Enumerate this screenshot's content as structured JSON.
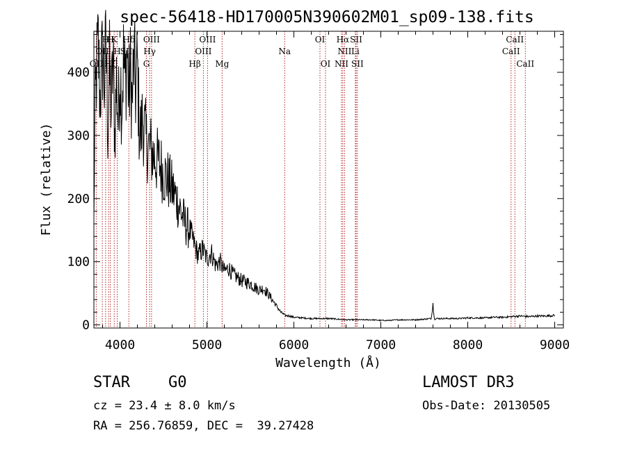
{
  "chart_data": {
    "type": "line",
    "title": "spec-56418-HD170005N390602M01_sp09-138.fits",
    "xlabel": "Wavelength (Å)",
    "ylabel": "Flux (relative)",
    "xlim": [
      3700,
      9100
    ],
    "ylim": [
      -5,
      465
    ],
    "xticks": [
      4000,
      5000,
      6000,
      7000,
      8000,
      9000
    ],
    "xtick_labels": [
      "4000",
      "5000",
      "6000",
      "7000",
      "8000",
      "9000"
    ],
    "yticks": [
      0,
      100,
      200,
      300,
      400
    ],
    "ytick_labels": [
      "0",
      "100",
      "200",
      "300",
      "400"
    ],
    "grid": false,
    "line_color": "#000000",
    "marker_color": "#b22222",
    "series": [
      {
        "name": "flux",
        "x": [
          3700,
          3710,
          3730,
          3750,
          3770,
          3800,
          3820,
          3840,
          3860,
          3880,
          3900,
          3920,
          3940,
          3960,
          3980,
          4000,
          4020,
          4040,
          4060,
          4080,
          4100,
          4120,
          4140,
          4160,
          4180,
          4200,
          4220,
          4240,
          4260,
          4300,
          4340,
          4380,
          4420,
          4460,
          4500,
          4550,
          4600,
          4650,
          4700,
          4750,
          4800,
          4850,
          4900,
          4950,
          5000,
          5050,
          5100,
          5150,
          5200,
          5250,
          5300,
          5350,
          5400,
          5450,
          5500,
          5550,
          5600,
          5650,
          5700,
          5750,
          5800,
          5850,
          5900,
          5950,
          6000,
          6100,
          6200,
          6300,
          6400,
          6500,
          6600,
          6700,
          6800,
          6900,
          7000,
          7100,
          7200,
          7300,
          7400,
          7500,
          7580,
          7600,
          7610,
          7620,
          7640,
          7700,
          7800,
          7900,
          8000,
          8100,
          8200,
          8300,
          8400,
          8500,
          8600,
          8700,
          8800,
          8900,
          9000
        ],
        "y": [
          160,
          320,
          400,
          440,
          360,
          430,
          380,
          445,
          310,
          400,
          340,
          420,
          300,
          390,
          320,
          410,
          350,
          420,
          380,
          440,
          360,
          400,
          350,
          420,
          370,
          410,
          320,
          300,
          330,
          290,
          280,
          270,
          260,
          255,
          240,
          230,
          215,
          200,
          180,
          160,
          150,
          130,
          110,
          120,
          105,
          115,
          95,
          100,
          85,
          90,
          80,
          75,
          70,
          68,
          65,
          60,
          55,
          58,
          50,
          40,
          30,
          20,
          15,
          14,
          12,
          11,
          10,
          10,
          10,
          9,
          8,
          8,
          8,
          8,
          7,
          7,
          8,
          8,
          8,
          9,
          10,
          35,
          15,
          9,
          10,
          10,
          10,
          10,
          11,
          11,
          11,
          12,
          12,
          13,
          14,
          13,
          14,
          14,
          15
        ]
      }
    ],
    "line_markers": [
      {
        "x": 3727,
        "labels": [
          "OII"
        ]
      },
      {
        "x": 3797,
        "labels": [
          "OII",
          "H"
        ]
      },
      {
        "x": 3835,
        "labels": [
          "Hη",
          "Hζ"
        ]
      },
      {
        "x": 3869,
        "labels": [
          "NeIII"
        ]
      },
      {
        "x": 3889,
        "labels": [
          "Hζ"
        ]
      },
      {
        "x": 3934,
        "labels": [
          "K"
        ]
      },
      {
        "x": 3968,
        "labels": [
          "H"
        ]
      },
      {
        "x": 4102,
        "labels": [
          "Hδ",
          "SII"
        ]
      },
      {
        "x": 4304,
        "labels": [
          "G"
        ]
      },
      {
        "x": 4341,
        "labels": [
          "Hγ"
        ]
      },
      {
        "x": 4363,
        "labels": [
          "OIII"
        ]
      },
      {
        "x": 4861,
        "labels": [
          "Hβ"
        ]
      },
      {
        "x": 4959,
        "labels": [
          "OIII"
        ]
      },
      {
        "x": 5007,
        "labels": [
          "OIII"
        ]
      },
      {
        "x": 5175,
        "labels": [
          "Mg"
        ]
      },
      {
        "x": 5894,
        "labels": [
          "Na"
        ]
      },
      {
        "x": 6300,
        "labels": [
          "OI"
        ]
      },
      {
        "x": 6364,
        "labels": [
          "OI"
        ]
      },
      {
        "x": 6548,
        "labels": [
          "NII"
        ]
      },
      {
        "x": 6563,
        "labels": [
          "Hα"
        ]
      },
      {
        "x": 6583,
        "labels": [
          "NII"
        ]
      },
      {
        "x": 6707,
        "labels": [
          "Li"
        ]
      },
      {
        "x": 6716,
        "labels": [
          "SII"
        ]
      },
      {
        "x": 6731,
        "labels": [
          "SII"
        ]
      },
      {
        "x": 8498,
        "labels": [
          "CaII"
        ]
      },
      {
        "x": 8542,
        "labels": [
          "CaII"
        ]
      },
      {
        "x": 8662,
        "labels": [
          "CaII"
        ]
      }
    ],
    "marker_labels": [
      {
        "text": "OII",
        "x": 3727,
        "row": 3
      },
      {
        "text": "OII",
        "x": 3797,
        "row": 2
      },
      {
        "text": "H",
        "x": 3835,
        "row": 1
      },
      {
        "text": "H",
        "x": 3890,
        "row": 1
      },
      {
        "text": "Hζ",
        "x": 3889,
        "row": 3
      },
      {
        "text": "K",
        "x": 3934,
        "row": 1
      },
      {
        "text": "H",
        "x": 3968,
        "row": 2
      },
      {
        "text": "Hδ",
        "x": 4102,
        "row": 1
      },
      {
        "text": "SII",
        "x": 4072,
        "row": 2
      },
      {
        "text": "OIII",
        "x": 4363,
        "row": 1
      },
      {
        "text": "Hγ",
        "x": 4341,
        "row": 2
      },
      {
        "text": "G",
        "x": 4304,
        "row": 3
      },
      {
        "text": "Hβ",
        "x": 4861,
        "row": 3
      },
      {
        "text": "OIII",
        "x": 5007,
        "row": 1
      },
      {
        "text": "OIII",
        "x": 4959,
        "row": 2
      },
      {
        "text": "Mg",
        "x": 5175,
        "row": 3
      },
      {
        "text": "Na",
        "x": 5894,
        "row": 2
      },
      {
        "text": "OI",
        "x": 6300,
        "row": 1
      },
      {
        "text": "OI",
        "x": 6364,
        "row": 3
      },
      {
        "text": "Hα",
        "x": 6563,
        "row": 1
      },
      {
        "text": "SII",
        "x": 6716,
        "row": 1
      },
      {
        "text": "NII",
        "x": 6583,
        "row": 2
      },
      {
        "text": "Li",
        "x": 6707,
        "row": 2
      },
      {
        "text": "NII",
        "x": 6548,
        "row": 3
      },
      {
        "text": "SII",
        "x": 6731,
        "row": 3
      },
      {
        "text": "CaII",
        "x": 8542,
        "row": 1
      },
      {
        "text": "CaII",
        "x": 8498,
        "row": 2
      },
      {
        "text": "CaII",
        "x": 8662,
        "row": 3
      }
    ]
  },
  "info": {
    "object_class": "STAR",
    "subclass": "G0",
    "survey": "LAMOST DR3",
    "cz": "cz = 23.4 ± 8.0 km/s",
    "obs_date": "Obs-Date: 20130505",
    "coords": "RA = 256.76859, DEC =  39.27428"
  }
}
